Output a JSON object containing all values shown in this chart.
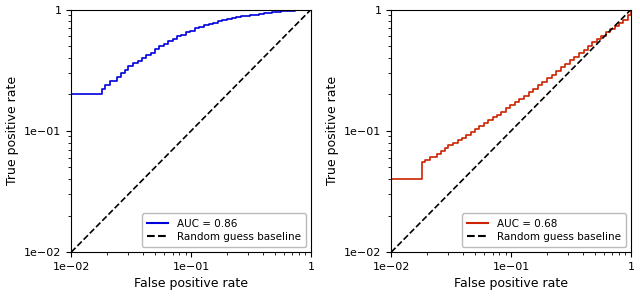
{
  "fig_width": 6.4,
  "fig_height": 2.96,
  "dpi": 100,
  "xlim": [
    0.01,
    1.0
  ],
  "ylim": [
    0.01,
    1.0
  ],
  "xlabel": "False positive rate",
  "ylabel": "True positive rate",
  "plot1": {
    "color": "#0000dd",
    "legend_auc_label": "AUC = 0.86",
    "legend_baseline_label": "Random guess baseline",
    "fpr": [
      0.01,
      0.011,
      0.012,
      0.013,
      0.014,
      0.016,
      0.018,
      0.019,
      0.021,
      0.024,
      0.026,
      0.028,
      0.03,
      0.033,
      0.036,
      0.039,
      0.042,
      0.046,
      0.05,
      0.054,
      0.059,
      0.064,
      0.07,
      0.076,
      0.083,
      0.09,
      0.098,
      0.107,
      0.117,
      0.128,
      0.14,
      0.153,
      0.167,
      0.182,
      0.199,
      0.218,
      0.238,
      0.26,
      0.284,
      0.31,
      0.338,
      0.369,
      0.402,
      0.438,
      0.477,
      0.519,
      0.565,
      0.615,
      0.67,
      0.73,
      0.795,
      0.866,
      0.944,
      1.0
    ],
    "tpr": [
      0.2,
      0.2,
      0.2,
      0.2,
      0.2,
      0.2,
      0.22,
      0.24,
      0.26,
      0.28,
      0.3,
      0.32,
      0.34,
      0.36,
      0.38,
      0.4,
      0.42,
      0.44,
      0.47,
      0.5,
      0.52,
      0.55,
      0.57,
      0.6,
      0.62,
      0.65,
      0.67,
      0.7,
      0.72,
      0.74,
      0.76,
      0.78,
      0.8,
      0.82,
      0.84,
      0.86,
      0.87,
      0.88,
      0.89,
      0.9,
      0.91,
      0.92,
      0.93,
      0.94,
      0.95,
      0.96,
      0.97,
      0.975,
      0.98,
      0.985,
      0.99,
      0.995,
      0.998,
      1.0
    ]
  },
  "plot2": {
    "color": "#cc2200",
    "legend_auc_label": "AUC = 0.68",
    "legend_baseline_label": "Random guess baseline",
    "fpr": [
      0.01,
      0.011,
      0.012,
      0.013,
      0.014,
      0.016,
      0.018,
      0.019,
      0.021,
      0.024,
      0.026,
      0.028,
      0.03,
      0.033,
      0.036,
      0.039,
      0.042,
      0.046,
      0.05,
      0.054,
      0.059,
      0.064,
      0.07,
      0.076,
      0.083,
      0.09,
      0.098,
      0.107,
      0.117,
      0.128,
      0.14,
      0.153,
      0.167,
      0.182,
      0.199,
      0.218,
      0.238,
      0.26,
      0.284,
      0.31,
      0.338,
      0.369,
      0.402,
      0.438,
      0.477,
      0.519,
      0.565,
      0.615,
      0.67,
      0.73,
      0.795,
      0.866,
      0.944,
      1.0
    ],
    "tpr": [
      0.04,
      0.04,
      0.04,
      0.04,
      0.04,
      0.04,
      0.055,
      0.058,
      0.061,
      0.065,
      0.068,
      0.072,
      0.076,
      0.08,
      0.084,
      0.088,
      0.093,
      0.098,
      0.104,
      0.11,
      0.116,
      0.122,
      0.129,
      0.136,
      0.144,
      0.153,
      0.162,
      0.172,
      0.183,
      0.195,
      0.208,
      0.222,
      0.237,
      0.254,
      0.272,
      0.291,
      0.311,
      0.333,
      0.356,
      0.381,
      0.408,
      0.437,
      0.468,
      0.501,
      0.536,
      0.572,
      0.61,
      0.649,
      0.69,
      0.733,
      0.777,
      0.826,
      0.9,
      1.0
    ]
  }
}
